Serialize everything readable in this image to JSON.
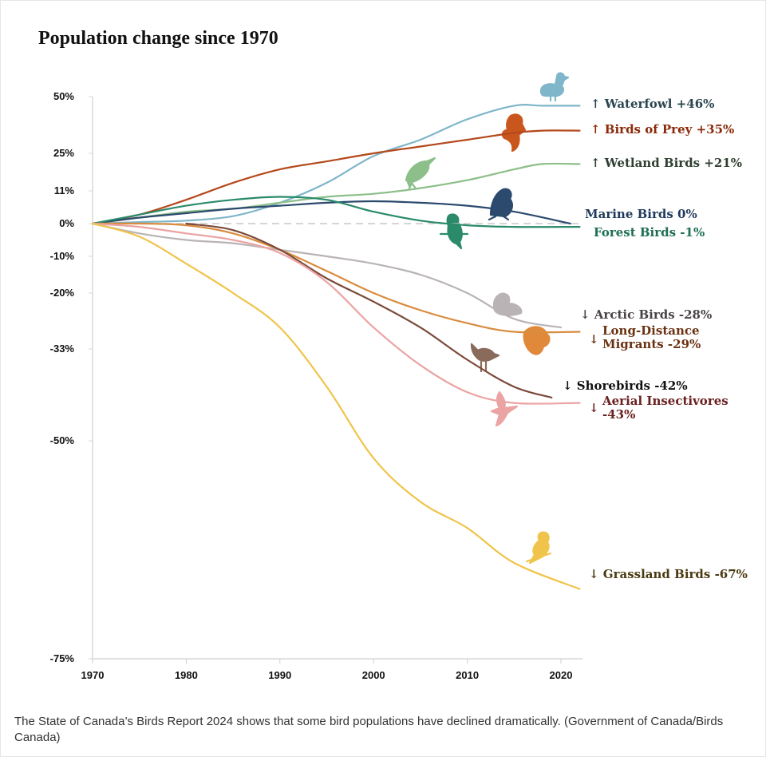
{
  "caption": "The State of Canada’s Birds Report 2024 shows that some bird populations have declined dramatically. (Government of Canada/Birds Canada)",
  "chart_data": {
    "type": "line",
    "title": "Population change since 1970",
    "xlabel": "",
    "ylabel": "",
    "xlim": [
      1970,
      2022
    ],
    "ylim": [
      -75,
      50
    ],
    "x_ticks": [
      1970,
      1980,
      1990,
      2000,
      2010,
      2020
    ],
    "x_tick_labels": [
      "1970",
      "1980",
      "1990",
      "2000",
      "2010",
      "2020"
    ],
    "y_ticks": [
      50,
      25,
      11,
      0,
      -10,
      -20,
      -33,
      -50,
      -75
    ],
    "y_tick_labels": [
      "50%",
      "25%",
      "11%",
      "0%",
      "-10%",
      "-20%",
      "-33%",
      "-50%",
      "-75%"
    ],
    "baseline": 0,
    "series": [
      {
        "key": "waterfowl",
        "name": "Waterfowl",
        "change": "+46%",
        "direction": "↑",
        "color": "#7fb6c9",
        "text_color": "#2b4550",
        "icon": "duck-icon",
        "x": [
          1970,
          1975,
          1980,
          1985,
          1990,
          1995,
          2000,
          2005,
          2010,
          2015,
          2018,
          2022
        ],
        "y": [
          0,
          0.5,
          1,
          2.5,
          7,
          14,
          24,
          31,
          40,
          46,
          46,
          46
        ]
      },
      {
        "key": "birds_of_prey",
        "name": "Birds of Prey",
        "change": "+35%",
        "direction": "↑",
        "color": "#b5481c",
        "text_color": "#8a2a0a",
        "icon": "raptor-icon",
        "x": [
          1970,
          1975,
          1980,
          1985,
          1990,
          1995,
          2000,
          2005,
          2010,
          2015,
          2018,
          2022
        ],
        "y": [
          0,
          3,
          8,
          14,
          19,
          22,
          25,
          28,
          31,
          34,
          35,
          35
        ]
      },
      {
        "key": "wetland_birds",
        "name": "Wetland Birds",
        "change": "+21%",
        "direction": "↑",
        "color": "#8cbf8a",
        "text_color": "#2f3f30",
        "icon": "heron-icon",
        "x": [
          1970,
          1975,
          1980,
          1985,
          1990,
          1995,
          2000,
          2005,
          2010,
          2015,
          2018,
          2022
        ],
        "y": [
          0,
          2,
          4,
          5,
          7,
          9,
          10,
          12,
          15,
          19,
          21,
          21
        ]
      },
      {
        "key": "marine_birds",
        "name": "Marine Birds",
        "change": "0%",
        "direction": "",
        "color": "#2b4a6e",
        "text_color": "#1f3a5c",
        "icon": "puffin-icon",
        "x": [
          1970,
          1975,
          1980,
          1985,
          1990,
          1995,
          2000,
          2005,
          2010,
          2015,
          2021
        ],
        "y": [
          0,
          2,
          3.5,
          5,
          6,
          7,
          7.5,
          7,
          6,
          4,
          0
        ]
      },
      {
        "key": "forest_birds",
        "name": "Forest Birds",
        "change": "-1%",
        "direction": "",
        "color": "#2a8a6a",
        "text_color": "#1e6e56",
        "icon": "songbird-icon",
        "x": [
          1970,
          1975,
          1980,
          1985,
          1990,
          1995,
          2000,
          2005,
          2010,
          2015,
          2022
        ],
        "y": [
          0,
          3,
          6,
          8,
          9,
          8,
          4,
          1,
          -0.5,
          -1,
          -1
        ]
      },
      {
        "key": "arctic_birds",
        "name": "Arctic Birds",
        "change": "-28%",
        "direction": "↓",
        "color": "#b9b3b6",
        "text_color": "#4a4446",
        "icon": "ptarmigan-icon",
        "x": [
          1970,
          1975,
          1980,
          1985,
          1990,
          1995,
          2000,
          2005,
          2010,
          2015,
          2020
        ],
        "y": [
          0,
          -3,
          -5,
          -6,
          -8,
          -10,
          -12,
          -15,
          -20,
          -26,
          -28
        ]
      },
      {
        "key": "long_distance_migrants",
        "name": "Long-Distance\nMigrants",
        "change": "-29%",
        "direction": "↓",
        "color": "#d98b3e",
        "text_color": "#6a3212",
        "icon": "oriole-icon",
        "x": [
          1970,
          1975,
          1980,
          1985,
          1990,
          1995,
          2000,
          2005,
          2010,
          2015,
          2022
        ],
        "y": [
          0,
          0,
          -0.5,
          -3,
          -8,
          -14,
          -20,
          -24,
          -27,
          -29,
          -29
        ]
      },
      {
        "key": "shorebirds",
        "name": "Shorebirds",
        "change": "-42%",
        "direction": "↓",
        "color": "#7a4a3a",
        "text_color": "#111111",
        "icon": "sandpiper-icon",
        "x": [
          1980,
          1985,
          1990,
          1995,
          2000,
          2005,
          2010,
          2015,
          2019
        ],
        "y": [
          0,
          -2,
          -8,
          -16,
          -22,
          -28,
          -35,
          -40,
          -42
        ]
      },
      {
        "key": "aerial_insectivores",
        "name": "Aerial Insectivores",
        "change": "-43%",
        "direction": "↓",
        "color": "#eba3a3",
        "text_color": "#6a2020",
        "icon": "swallow-icon",
        "x": [
          1970,
          1975,
          1980,
          1985,
          1990,
          1995,
          2000,
          2005,
          2010,
          2015,
          2022
        ],
        "y": [
          0,
          -1,
          -3,
          -5,
          -9,
          -17,
          -28,
          -36,
          -41,
          -43,
          -43
        ]
      },
      {
        "key": "grassland_birds",
        "name": "Grassland Birds",
        "change": "-67%",
        "direction": "↓",
        "color": "#f0c44a",
        "text_color": "#4a3a10",
        "icon": "meadowlark-icon",
        "x": [
          1970,
          1975,
          1980,
          1985,
          1990,
          1995,
          2000,
          2005,
          2010,
          2015,
          2022
        ],
        "y": [
          0,
          -4,
          -12,
          -20,
          -28,
          -40,
          -52,
          -57,
          -60,
          -64,
          -67
        ]
      }
    ]
  }
}
